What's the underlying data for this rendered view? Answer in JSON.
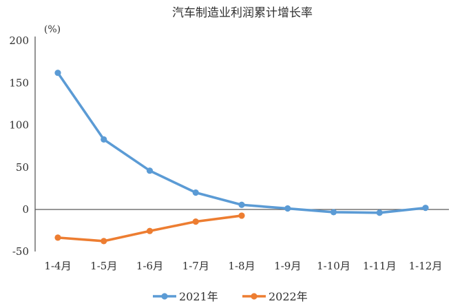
{
  "chart_data": {
    "type": "line",
    "title": "汽车制造业利润累计增长率",
    "ylabel": "(%)",
    "xlabel": "",
    "categories": [
      "1-4月",
      "1-5月",
      "1-6月",
      "1-7月",
      "1-8月",
      "1-9月",
      "1-10月",
      "1-11月",
      "1-12月"
    ],
    "series": [
      {
        "name": "2021年",
        "color": "#5B9BD5",
        "values": [
          162,
          83,
          46,
          20,
          5.5,
          1.2,
          -3.2,
          -3.9,
          1.9
        ]
      },
      {
        "name": "2022年",
        "color": "#ED7D31",
        "values": [
          -33.4,
          -37.5,
          -25.5,
          -14.4,
          -7.3,
          null,
          null,
          null,
          null
        ]
      }
    ],
    "ylim": [
      -50,
      200
    ],
    "yticks": [
      200,
      150,
      100,
      50,
      0,
      -50
    ],
    "grid": false,
    "legend_position": "bottom",
    "axis_color": "#595959",
    "text_color": "#303030"
  }
}
